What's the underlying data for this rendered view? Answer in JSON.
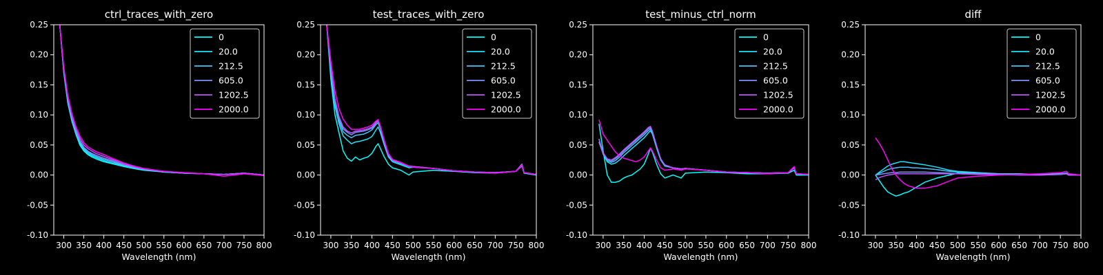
{
  "legend_labels": [
    "0",
    "20.0",
    "212.5",
    "605.0",
    "1202.5",
    "2000.0"
  ],
  "series_colors": [
    "#00ffff",
    "#1ae5ff",
    "#44c4ff",
    "#7e92ff",
    "#bb55ff",
    "#ff00ff"
  ],
  "chart_data": [
    {
      "type": "line",
      "title": "ctrl_traces_with_zero",
      "xlabel": "Wavelength (nm)",
      "ylabel": "",
      "xlim": [
        275,
        800
      ],
      "ylim": [
        -0.1,
        0.25
      ],
      "xticks": [
        300,
        350,
        400,
        450,
        500,
        550,
        600,
        650,
        700,
        750,
        800
      ],
      "yticks": [
        -0.1,
        -0.05,
        0.0,
        0.05,
        0.1,
        0.15,
        0.2,
        0.25
      ],
      "legend_position": "top-right",
      "grid": false,
      "x": [
        290,
        300,
        310,
        320,
        330,
        340,
        350,
        360,
        370,
        380,
        400,
        420,
        450,
        480,
        500,
        550,
        600,
        650,
        700,
        750,
        800
      ],
      "series": [
        {
          "name": "0",
          "values": [
            0.25,
            0.17,
            0.12,
            0.09,
            0.068,
            0.05,
            0.04,
            0.034,
            0.03,
            0.027,
            0.022,
            0.019,
            0.014,
            0.01,
            0.008,
            0.005,
            0.003,
            0.002,
            0.001,
            0.003,
            0.0
          ]
        },
        {
          "name": "20.0",
          "values": [
            0.25,
            0.172,
            0.122,
            0.092,
            0.07,
            0.053,
            0.042,
            0.036,
            0.032,
            0.029,
            0.024,
            0.02,
            0.015,
            0.011,
            0.009,
            0.005,
            0.003,
            0.002,
            0.001,
            0.003,
            0.0
          ]
        },
        {
          "name": "212.5",
          "values": [
            0.25,
            0.173,
            0.124,
            0.094,
            0.072,
            0.055,
            0.044,
            0.038,
            0.034,
            0.031,
            0.026,
            0.022,
            0.016,
            0.012,
            0.009,
            0.005,
            0.003,
            0.002,
            0.001,
            0.003,
            0.0
          ]
        },
        {
          "name": "605.0",
          "values": [
            0.25,
            0.175,
            0.126,
            0.096,
            0.074,
            0.057,
            0.046,
            0.04,
            0.036,
            0.033,
            0.028,
            0.024,
            0.017,
            0.012,
            0.01,
            0.006,
            0.003,
            0.002,
            0.001,
            0.003,
            0.0
          ]
        },
        {
          "name": "1202.5",
          "values": [
            0.25,
            0.177,
            0.129,
            0.099,
            0.077,
            0.061,
            0.05,
            0.044,
            0.04,
            0.036,
            0.031,
            0.026,
            0.019,
            0.013,
            0.01,
            0.006,
            0.004,
            0.002,
            0.001,
            0.003,
            0.0
          ]
        },
        {
          "name": "2000.0",
          "values": [
            0.25,
            0.18,
            0.133,
            0.103,
            0.081,
            0.065,
            0.054,
            0.047,
            0.043,
            0.039,
            0.034,
            0.028,
            0.02,
            0.014,
            0.011,
            0.006,
            0.004,
            0.002,
            -0.002,
            0.002,
            -0.001
          ]
        }
      ]
    },
    {
      "type": "line",
      "title": "test_traces_with_zero",
      "xlabel": "Wavelength (nm)",
      "ylabel": "",
      "xlim": [
        275,
        800
      ],
      "ylim": [
        -0.1,
        0.25
      ],
      "xticks": [
        300,
        350,
        400,
        450,
        500,
        550,
        600,
        650,
        700,
        750,
        800
      ],
      "yticks": [
        -0.1,
        -0.05,
        0.0,
        0.05,
        0.1,
        0.15,
        0.2,
        0.25
      ],
      "legend_position": "top-right",
      "grid": false,
      "x": [
        290,
        300,
        310,
        320,
        330,
        340,
        350,
        360,
        370,
        380,
        390,
        400,
        410,
        415,
        420,
        430,
        440,
        450,
        470,
        490,
        500,
        550,
        600,
        650,
        700,
        750,
        765,
        770,
        800
      ],
      "series": [
        {
          "name": "0",
          "values": [
            0.25,
            0.16,
            0.1,
            0.07,
            0.04,
            0.028,
            0.023,
            0.03,
            0.025,
            0.028,
            0.03,
            0.036,
            0.048,
            0.052,
            0.045,
            0.03,
            0.018,
            0.012,
            0.008,
            0.0,
            0.005,
            0.008,
            0.006,
            0.004,
            0.003,
            0.006,
            0.015,
            0.003,
            0.0
          ]
        },
        {
          "name": "20.0",
          "values": [
            0.25,
            0.17,
            0.115,
            0.085,
            0.065,
            0.058,
            0.052,
            0.055,
            0.056,
            0.058,
            0.06,
            0.064,
            0.075,
            0.08,
            0.072,
            0.05,
            0.03,
            0.022,
            0.017,
            0.012,
            0.013,
            0.011,
            0.007,
            0.005,
            0.004,
            0.006,
            0.018,
            0.004,
            0.001
          ]
        },
        {
          "name": "212.5",
          "values": [
            0.25,
            0.175,
            0.12,
            0.09,
            0.072,
            0.066,
            0.062,
            0.066,
            0.067,
            0.068,
            0.071,
            0.075,
            0.084,
            0.087,
            0.078,
            0.053,
            0.032,
            0.024,
            0.019,
            0.014,
            0.014,
            0.011,
            0.007,
            0.005,
            0.004,
            0.006,
            0.018,
            0.004,
            0.001
          ]
        },
        {
          "name": "605.0",
          "values": [
            0.25,
            0.178,
            0.124,
            0.094,
            0.077,
            0.071,
            0.067,
            0.071,
            0.072,
            0.073,
            0.075,
            0.078,
            0.087,
            0.09,
            0.081,
            0.055,
            0.033,
            0.025,
            0.02,
            0.015,
            0.014,
            0.011,
            0.007,
            0.005,
            0.004,
            0.006,
            0.018,
            0.004,
            0.001
          ]
        },
        {
          "name": "1202.5",
          "values": [
            0.25,
            0.18,
            0.127,
            0.097,
            0.08,
            0.073,
            0.07,
            0.073,
            0.074,
            0.075,
            0.077,
            0.08,
            0.088,
            0.091,
            0.082,
            0.056,
            0.034,
            0.025,
            0.02,
            0.015,
            0.014,
            0.011,
            0.007,
            0.005,
            0.004,
            0.006,
            0.018,
            0.004,
            0.001
          ]
        },
        {
          "name": "2000.0",
          "values": [
            0.25,
            0.19,
            0.14,
            0.11,
            0.093,
            0.083,
            0.076,
            0.076,
            0.076,
            0.078,
            0.08,
            0.083,
            0.09,
            0.092,
            0.083,
            0.058,
            0.036,
            0.026,
            0.021,
            0.015,
            0.013,
            0.011,
            0.007,
            0.005,
            0.003,
            0.006,
            0.016,
            0.004,
            0.001
          ]
        }
      ]
    },
    {
      "type": "line",
      "title": "test_minus_ctrl_norm",
      "xlabel": "Wavelength (nm)",
      "ylabel": "",
      "xlim": [
        275,
        800
      ],
      "ylim": [
        -0.1,
        0.25
      ],
      "xticks": [
        300,
        350,
        400,
        450,
        500,
        550,
        600,
        650,
        700,
        750,
        800
      ],
      "yticks": [
        -0.1,
        -0.05,
        0.0,
        0.05,
        0.1,
        0.15,
        0.2,
        0.25
      ],
      "legend_position": "top-right",
      "grid": false,
      "x": [
        290,
        300,
        310,
        320,
        330,
        340,
        350,
        360,
        370,
        380,
        390,
        400,
        410,
        415,
        420,
        430,
        440,
        450,
        470,
        490,
        500,
        550,
        600,
        650,
        700,
        750,
        765,
        770,
        800
      ],
      "series": [
        {
          "name": "0",
          "values": [
            0.085,
            0.04,
            0.0,
            -0.012,
            -0.012,
            -0.01,
            -0.005,
            -0.002,
            0.0,
            0.005,
            0.01,
            0.018,
            0.035,
            0.045,
            0.038,
            0.018,
            0.002,
            -0.005,
            0.0,
            -0.005,
            0.003,
            0.005,
            0.004,
            0.002,
            0.002,
            0.003,
            0.008,
            0.0,
            0.0
          ]
        },
        {
          "name": "20.0",
          "values": [
            0.06,
            0.035,
            0.022,
            0.018,
            0.02,
            0.025,
            0.032,
            0.038,
            0.044,
            0.05,
            0.056,
            0.062,
            0.07,
            0.074,
            0.068,
            0.045,
            0.025,
            0.015,
            0.012,
            0.01,
            0.011,
            0.008,
            0.005,
            0.004,
            0.003,
            0.004,
            0.012,
            0.002,
            0.001
          ]
        },
        {
          "name": "212.5",
          "values": [
            0.055,
            0.035,
            0.024,
            0.021,
            0.024,
            0.03,
            0.037,
            0.043,
            0.049,
            0.055,
            0.061,
            0.067,
            0.074,
            0.077,
            0.07,
            0.047,
            0.026,
            0.016,
            0.012,
            0.01,
            0.011,
            0.008,
            0.005,
            0.004,
            0.003,
            0.004,
            0.012,
            0.002,
            0.001
          ]
        },
        {
          "name": "605.0",
          "values": [
            0.055,
            0.036,
            0.026,
            0.023,
            0.027,
            0.033,
            0.04,
            0.046,
            0.052,
            0.058,
            0.064,
            0.07,
            0.077,
            0.079,
            0.072,
            0.048,
            0.027,
            0.016,
            0.012,
            0.01,
            0.011,
            0.008,
            0.005,
            0.004,
            0.003,
            0.004,
            0.012,
            0.002,
            0.001
          ]
        },
        {
          "name": "1202.5",
          "values": [
            0.06,
            0.037,
            0.027,
            0.025,
            0.029,
            0.035,
            0.042,
            0.048,
            0.054,
            0.06,
            0.066,
            0.072,
            0.079,
            0.081,
            0.073,
            0.049,
            0.027,
            0.017,
            0.012,
            0.01,
            0.011,
            0.008,
            0.005,
            0.004,
            0.003,
            0.004,
            0.012,
            0.002,
            0.001
          ]
        },
        {
          "name": "2000.0",
          "values": [
            0.092,
            0.068,
            0.058,
            0.048,
            0.038,
            0.032,
            0.028,
            0.026,
            0.024,
            0.022,
            0.025,
            0.03,
            0.04,
            0.045,
            0.04,
            0.025,
            0.012,
            0.008,
            0.01,
            0.008,
            0.01,
            0.008,
            0.005,
            0.004,
            0.002,
            0.004,
            0.014,
            0.002,
            0.001
          ]
        }
      ]
    },
    {
      "type": "line",
      "title": "diff",
      "xlabel": "Wavelength (nm)",
      "ylabel": "",
      "xlim": [
        275,
        800
      ],
      "ylim": [
        -0.1,
        0.25
      ],
      "xticks": [
        300,
        350,
        400,
        450,
        500,
        550,
        600,
        650,
        700,
        750,
        800
      ],
      "yticks": [
        -0.1,
        -0.05,
        0.0,
        0.05,
        0.1,
        0.15,
        0.2,
        0.25
      ],
      "legend_position": "top-right",
      "grid": false,
      "x": [
        300,
        310,
        320,
        330,
        340,
        350,
        360,
        370,
        380,
        390,
        400,
        420,
        450,
        480,
        500,
        550,
        600,
        650,
        700,
        750,
        765,
        770,
        800
      ],
      "series": [
        {
          "name": "0",
          "values": [
            0.0,
            -0.01,
            -0.02,
            -0.028,
            -0.032,
            -0.035,
            -0.033,
            -0.03,
            -0.028,
            -0.024,
            -0.02,
            -0.012,
            -0.005,
            0.0,
            0.003,
            0.002,
            0.001,
            0.001,
            0.001,
            0.002,
            0.003,
            0.001,
            0.0
          ]
        },
        {
          "name": "20.0",
          "values": [
            0.0,
            0.005,
            0.01,
            0.015,
            0.018,
            0.02,
            0.022,
            0.022,
            0.021,
            0.02,
            0.019,
            0.017,
            0.013,
            0.008,
            0.006,
            0.004,
            0.002,
            0.002,
            0.001,
            0.002,
            0.003,
            0.001,
            0.0
          ]
        },
        {
          "name": "212.5",
          "values": [
            0.0,
            0.003,
            0.006,
            0.009,
            0.011,
            0.012,
            0.013,
            0.013,
            0.013,
            0.012,
            0.012,
            0.011,
            0.009,
            0.006,
            0.005,
            0.003,
            0.002,
            0.001,
            0.001,
            0.002,
            0.002,
            0.001,
            0.0
          ]
        },
        {
          "name": "605.0",
          "values": [
            0.0,
            0.001,
            0.002,
            0.003,
            0.004,
            0.004,
            0.005,
            0.005,
            0.005,
            0.005,
            0.005,
            0.005,
            0.004,
            0.003,
            0.002,
            0.002,
            0.001,
            0.001,
            0.0,
            0.001,
            0.002,
            0.0,
            0.0
          ]
        },
        {
          "name": "1202.5",
          "values": [
            -0.008,
            -0.004,
            -0.002,
            0.0,
            0.001,
            0.002,
            0.002,
            0.002,
            0.002,
            0.002,
            0.002,
            0.002,
            0.002,
            0.002,
            0.002,
            0.001,
            0.001,
            0.0,
            0.0,
            0.001,
            0.002,
            0.0,
            0.0
          ]
        },
        {
          "name": "2000.0",
          "values": [
            0.062,
            0.052,
            0.04,
            0.025,
            0.01,
            0.0,
            -0.008,
            -0.014,
            -0.018,
            -0.02,
            -0.022,
            -0.022,
            -0.018,
            -0.01,
            -0.005,
            -0.002,
            0.0,
            0.001,
            0.002,
            0.004,
            0.006,
            0.002,
            0.0
          ]
        }
      ]
    }
  ]
}
